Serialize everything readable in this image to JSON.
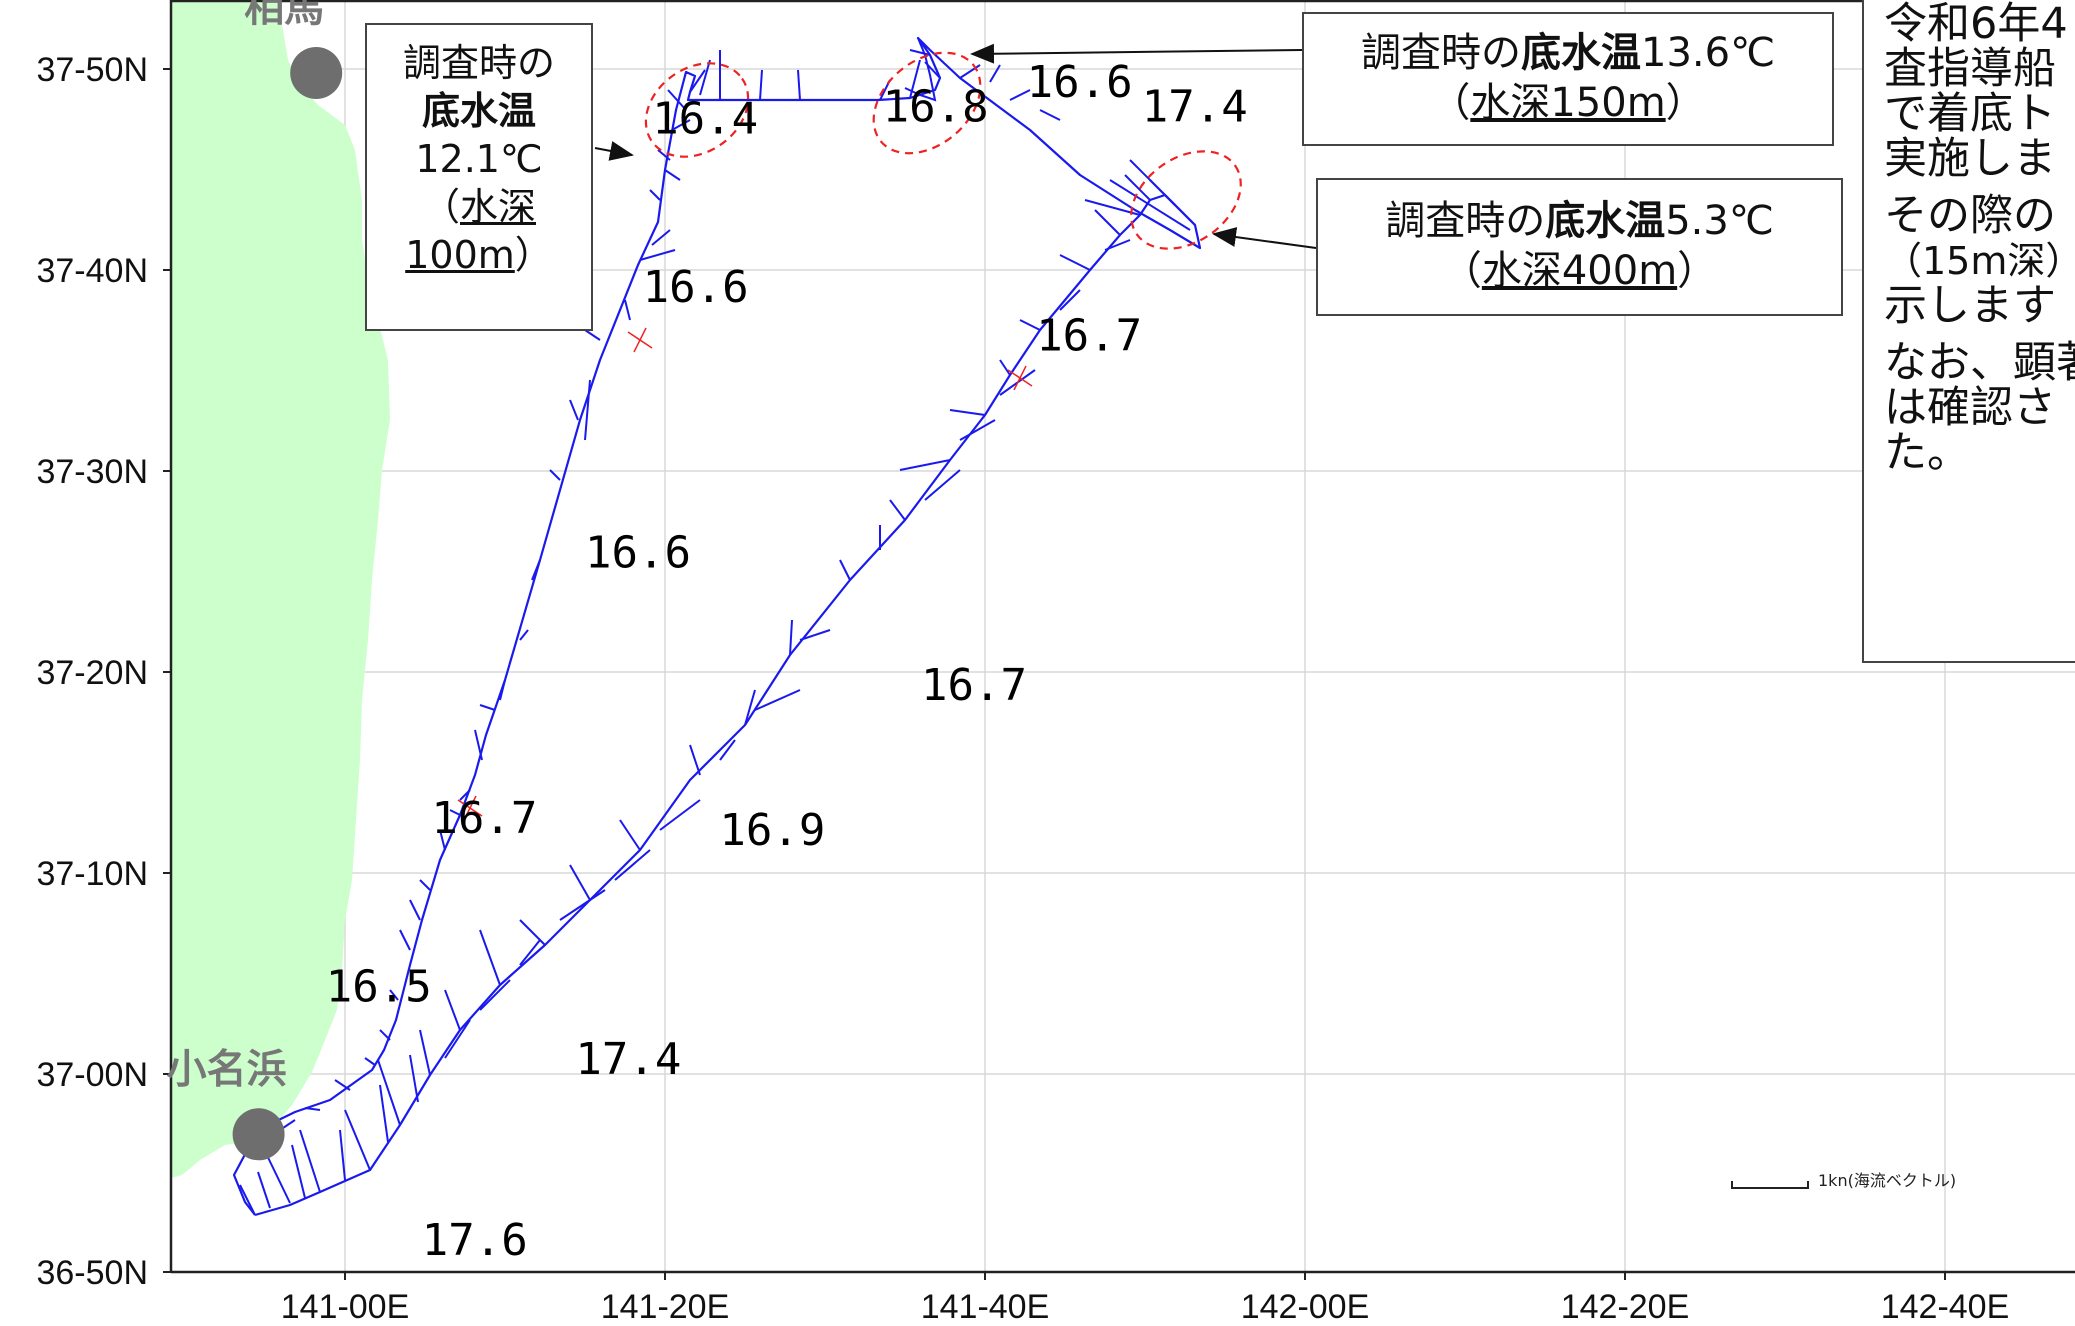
{
  "map": {
    "x_ticks": [
      "141-00E",
      "141-20E",
      "141-40E",
      "142-00E",
      "142-20E",
      "142-40E"
    ],
    "y_ticks": [
      "37-50N",
      "37-40N",
      "37-30N",
      "37-20N",
      "37-10N",
      "37-00N",
      "36-50N"
    ],
    "places": [
      {
        "name": "相馬",
        "lon": 140.97,
        "lat": 37.83
      },
      {
        "name": "小名浜",
        "lon": 140.91,
        "lat": 36.95
      }
    ],
    "temperature_labels": [
      {
        "text": "16.4",
        "lon": 141.32,
        "lat": 37.78
      },
      {
        "text": "16.8",
        "lon": 141.56,
        "lat": 37.79
      },
      {
        "text": "16.6",
        "lon": 141.71,
        "lat": 37.81
      },
      {
        "text": "17.4",
        "lon": 141.83,
        "lat": 37.79
      },
      {
        "text": "16.6",
        "lon": 141.31,
        "lat": 37.64
      },
      {
        "text": "16.7",
        "lon": 141.72,
        "lat": 37.6
      },
      {
        "text": "16.6",
        "lon": 141.25,
        "lat": 37.42
      },
      {
        "text": "16.7",
        "lon": 141.6,
        "lat": 37.31
      },
      {
        "text": "16.7",
        "lon": 141.09,
        "lat": 37.2
      },
      {
        "text": "16.9",
        "lon": 141.39,
        "lat": 37.19
      },
      {
        "text": "16.5",
        "lon": 140.98,
        "lat": 37.06
      },
      {
        "text": "17.4",
        "lon": 141.24,
        "lat": 37.0
      },
      {
        "text": "17.6",
        "lon": 141.08,
        "lat": 36.85
      }
    ],
    "scale_bar_label": "1kn(海流ベクトル)",
    "colors": {
      "land": "#ccffcc",
      "track": "#1a1aee",
      "highlight": "#ee2222",
      "place_dot": "#6e6e6e",
      "place_label": "#777777"
    }
  },
  "callouts": [
    {
      "line1": "調査時の",
      "line2_bold": "底水温",
      "line3": "12.1℃",
      "line4": "（",
      "depth_underlined": "水深",
      "line5_underlined": "100m",
      "line5_close": "）"
    },
    {
      "prefix": "調査時の",
      "bold": "底水温",
      "value": "13.6℃",
      "open": "（",
      "depth_underlined": "水深150m",
      "close": "）"
    },
    {
      "prefix": "調査時の",
      "bold": "底水温",
      "value": "5.3℃",
      "open": "（",
      "depth_underlined": "水深400m",
      "close": "）"
    }
  ],
  "note_lines": [
    "令和6年4",
    "査指導船",
    "で着底ト",
    "実施しま",
    "その際の",
    "（15m深）",
    "示します",
    "なお、顕著",
    "は確認さ",
    "た。"
  ]
}
